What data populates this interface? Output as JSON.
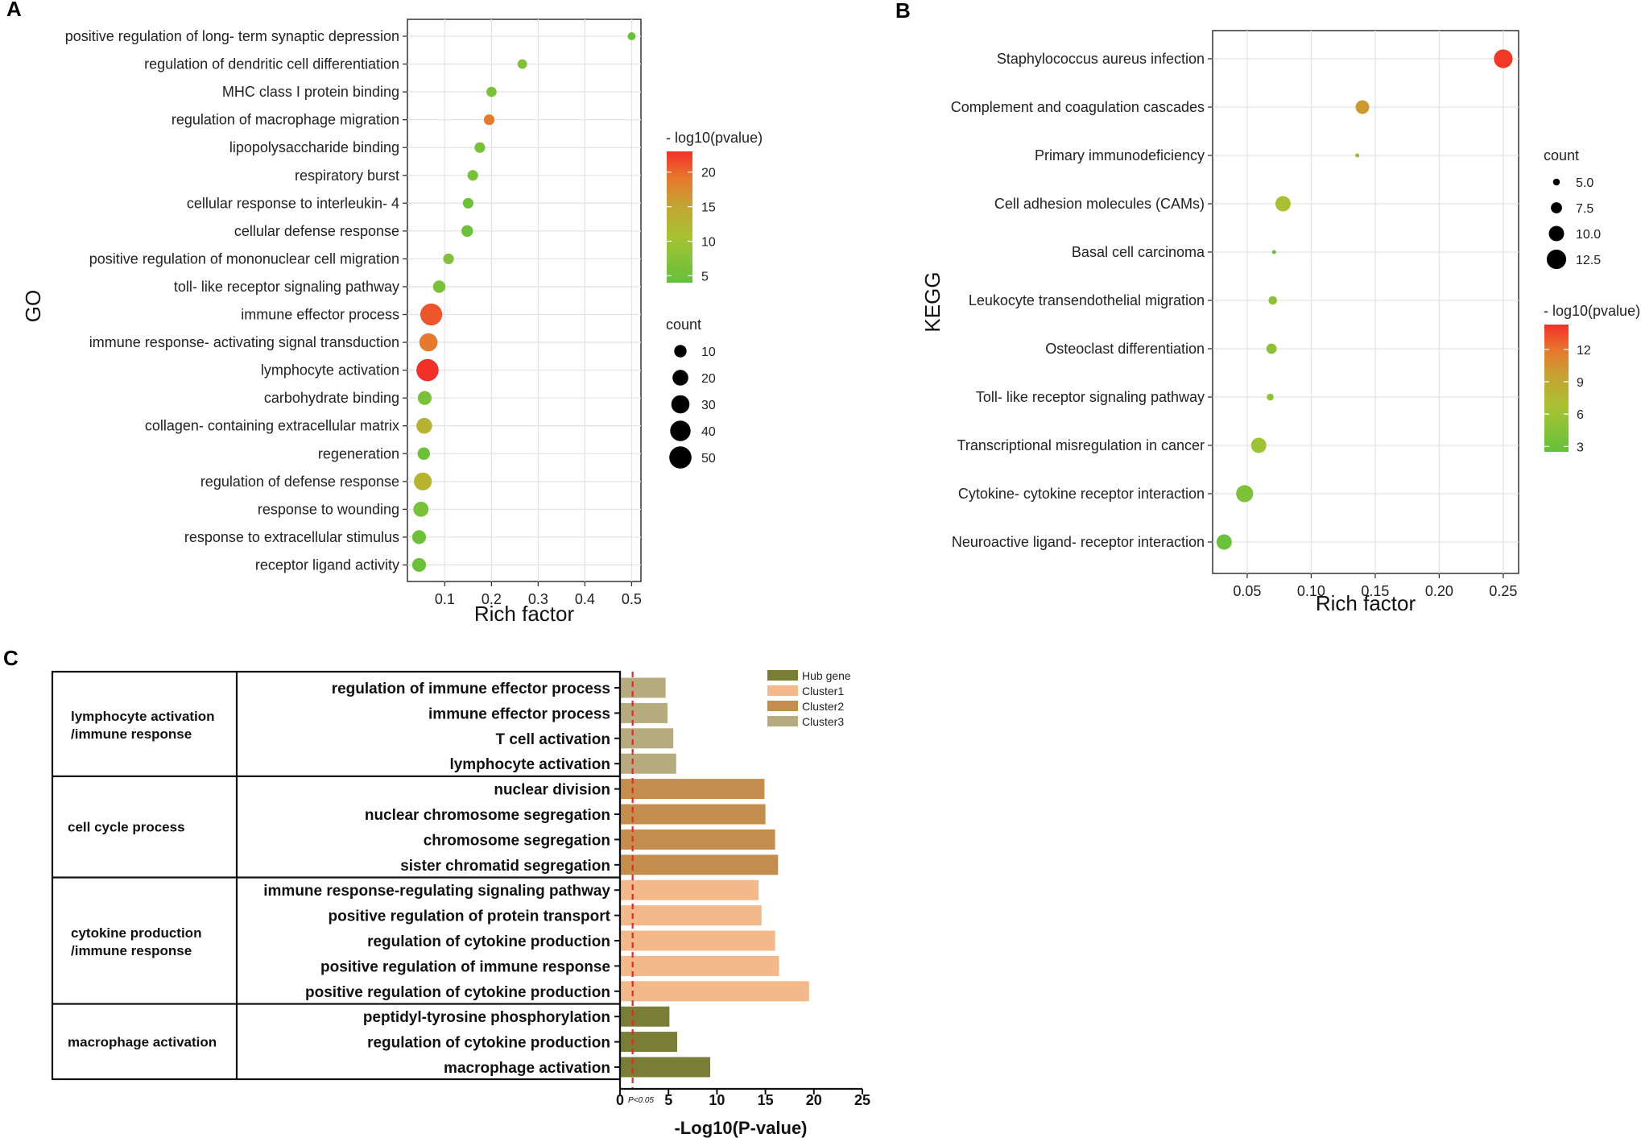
{
  "panels": {
    "a": "A",
    "b": "B",
    "c": "C"
  },
  "chart_data": [
    {
      "id": "A",
      "type": "scatter",
      "xlabel": "Rich factor",
      "ylabel": "GO",
      "xlim": [
        0.02,
        0.52
      ],
      "xticks": [
        "0.1",
        "0.2",
        "0.3",
        "0.4",
        "0.5"
      ],
      "categories": [
        "positive regulation of long- term synaptic depression",
        "regulation of dendritic cell differentiation",
        "MHC class I protein binding",
        "regulation of macrophage migration",
        "lipopolysaccharide binding",
        "respiratory burst",
        "cellular response to interleukin- 4",
        "cellular defense response",
        "positive regulation of mononuclear cell migration",
        "toll- like receptor signaling pathway",
        "immune effector process",
        "immune response- activating signal transduction",
        "lymphocyte activation",
        "carbohydrate binding",
        "collagen- containing extracellular matrix",
        "regeneration",
        "regulation of defense response",
        "response to wounding",
        "response to extracellular stimulus",
        "receptor ligand activity"
      ],
      "x": [
        0.5,
        0.266,
        0.2,
        0.195,
        0.175,
        0.16,
        0.15,
        0.148,
        0.108,
        0.088,
        0.071,
        0.065,
        0.063,
        0.057,
        0.056,
        0.055,
        0.053,
        0.049,
        0.045,
        0.045
      ],
      "count": [
        2,
        4,
        5,
        6,
        6,
        6,
        6,
        8,
        6,
        10,
        48,
        30,
        50,
        14,
        20,
        10,
        28,
        18,
        14,
        14
      ],
      "neg_log10_pvalue": [
        5,
        7,
        6,
        19,
        6,
        6,
        5,
        5,
        7,
        6,
        21,
        19,
        23,
        6,
        13,
        5,
        13,
        6,
        5,
        5
      ],
      "color_legend": {
        "title": "- log10(pvalue)",
        "ticks": [
          "20",
          "15",
          "10",
          "5"
        ],
        "range": [
          4,
          23
        ]
      },
      "size_legend": {
        "title": "count",
        "ticks": [
          "10",
          "20",
          "30",
          "40",
          "50"
        ]
      },
      "grid": true
    },
    {
      "id": "B",
      "type": "scatter",
      "xlabel": "Rich factor",
      "ylabel": "KEGG",
      "xlim": [
        0.023,
        0.262
      ],
      "xticks": [
        "0.05",
        "0.10",
        "0.15",
        "0.20",
        "0.25"
      ],
      "categories": [
        "Staphylococcus aureus infection",
        "Complement and coagulation cascades",
        "Primary immunodeficiency",
        "Cell adhesion molecules (CAMs)",
        "Basal cell carcinoma",
        "Leukocyte transendothelial migration",
        "Osteoclast differentiation",
        "Toll- like receptor signaling pathway",
        "Transcriptional misregulation in cancer",
        "Cytokine- cytokine receptor interaction",
        "Neuroactive ligand- receptor interaction"
      ],
      "x": [
        0.25,
        0.14,
        0.136,
        0.078,
        0.071,
        0.07,
        0.069,
        0.068,
        0.059,
        0.048,
        0.032
      ],
      "count": [
        12,
        9,
        3,
        10,
        3,
        6,
        7,
        5,
        10,
        11,
        10
      ],
      "neg_log10_pvalue": [
        14,
        10,
        5,
        7,
        3,
        5,
        5,
        5,
        6,
        4,
        3
      ],
      "color_legend": {
        "title": "- log10(pvalue)",
        "ticks": [
          "12",
          "9",
          "6",
          "3"
        ],
        "range": [
          2.5,
          14.3
        ]
      },
      "size_legend": {
        "title": "count",
        "ticks": [
          "5.0",
          "7.5",
          "10.0",
          "12.5"
        ]
      },
      "grid": true
    },
    {
      "id": "C",
      "type": "bar",
      "orientation": "horizontal",
      "xlabel": "-Log10(P-value)",
      "xlim": [
        0,
        25
      ],
      "xticks": [
        "0",
        "5",
        "10",
        "15",
        "20",
        "25"
      ],
      "threshold_label": "P<0.05",
      "threshold_value": 1.3,
      "legend": [
        {
          "name": "Hub gene",
          "color": "#7a7d36"
        },
        {
          "name": "Cluster1",
          "color": "#f4b98a"
        },
        {
          "name": "Cluster2",
          "color": "#c38d4e"
        },
        {
          "name": "Cluster3",
          "color": "#b5ab7e"
        }
      ],
      "groups": [
        {
          "line1": "lymphocyte activation",
          "line2": "/immune response",
          "rows": 4
        },
        {
          "line1": "cell cycle process",
          "line2": "",
          "rows": 4
        },
        {
          "line1": "cytokine production",
          "line2": "/immune response",
          "rows": 5
        },
        {
          "line1": "macrophage activation",
          "line2": "",
          "rows": 3
        }
      ],
      "categories": [
        "regulation of immune effector process",
        "immune effector process",
        "T cell activation",
        "lymphocyte activation",
        "nuclear division",
        "nuclear chromosome segregation",
        "chromosome segregation",
        "sister chromatid segregation",
        "immune response-regulating signaling pathway",
        "positive regulation of protein transport",
        "regulation of cytokine production",
        "positive regulation of immune response",
        "positive regulation of cytokine production",
        "peptidyl-tyrosine phosphorylation",
        "regulation of cytokine production",
        "macrophage activation"
      ],
      "values": [
        4.7,
        4.9,
        5.5,
        5.8,
        14.9,
        15.0,
        16.0,
        16.3,
        14.3,
        14.6,
        16.0,
        16.4,
        19.5,
        5.1,
        5.9,
        9.3
      ],
      "series": [
        "Cluster3",
        "Cluster3",
        "Cluster3",
        "Cluster3",
        "Cluster2",
        "Cluster2",
        "Cluster2",
        "Cluster2",
        "Cluster1",
        "Cluster1",
        "Cluster1",
        "Cluster1",
        "Cluster1",
        "Hub gene",
        "Hub gene",
        "Hub gene"
      ]
    }
  ]
}
